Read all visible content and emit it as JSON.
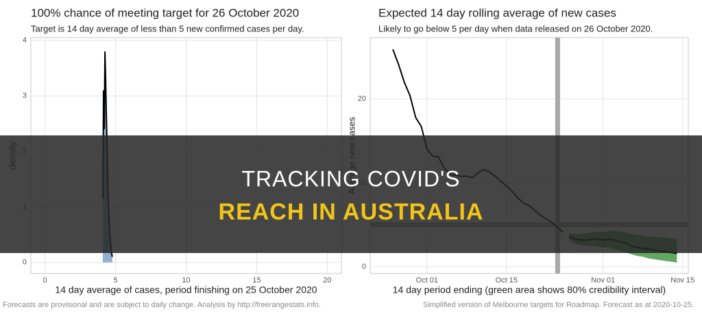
{
  "chart_data": [
    {
      "type": "area",
      "title": "100% chance of meeting target for 26 October 2020",
      "subtitle": "Target is 14 day average of less than 5 new confirmed cases per day.",
      "x_label": "14 day average of cases, period finishing on 25 October 2020",
      "y_label": "density",
      "x": [
        4.1,
        4.15,
        4.2,
        4.25,
        4.3,
        4.35,
        4.4,
        4.45,
        4.5,
        4.6,
        4.7,
        4.77
      ],
      "values": [
        1.15,
        3.1,
        2.4,
        3.8,
        3.3,
        2.6,
        2.1,
        1.5,
        1.0,
        0.5,
        0.2,
        0.1
      ],
      "color": "#000000",
      "fill": "#8fb0cf",
      "xlim": [
        -1,
        21
      ],
      "xticks": [
        0,
        5,
        10,
        15,
        20
      ],
      "ylim": [
        -0.2,
        4.05
      ],
      "yticks": [
        0,
        1,
        2,
        3,
        4
      ],
      "grid": true
    },
    {
      "type": "line",
      "title": "Expected 14 day rolling average of new cases",
      "subtitle": "Likely to go below 5 per day when data released on 26 October 2020.",
      "x_label": "14 day period ending (green area shows 80% credibility interval)",
      "y_label": "Average new cases",
      "line": {
        "x": [
          "Sep 25",
          "Sep 26",
          "Sep 27",
          "Sep 28",
          "Sep 29",
          "Sep 30",
          "Oct 01",
          "Oct 02",
          "Oct 03",
          "Oct 04",
          "Oct 05",
          "Oct 06",
          "Oct 07",
          "Oct 08",
          "Oct 09",
          "Oct 10",
          "Oct 11",
          "Oct 12",
          "Oct 13",
          "Oct 14",
          "Oct 15",
          "Oct 16",
          "Oct 17",
          "Oct 18",
          "Oct 19",
          "Oct 20",
          "Oct 21",
          "Oct 22",
          "Oct 23",
          "Oct 24",
          "Oct 25"
        ],
        "values": [
          25.9,
          24.1,
          22.0,
          20.4,
          17.8,
          16.7,
          14.0,
          13.2,
          13.1,
          11.8,
          11.0,
          10.9,
          10.8,
          10.8,
          10.6,
          11.2,
          11.6,
          11.3,
          10.8,
          10.2,
          9.6,
          9.0,
          8.2,
          7.6,
          7.3,
          6.7,
          6.1,
          5.7,
          5.3,
          4.7,
          4.1
        ]
      },
      "forecast": {
        "x": [
          "Oct 26",
          "Oct 27",
          "Oct 28",
          "Oct 29",
          "Oct 30",
          "Oct 31",
          "Nov 01",
          "Nov 02",
          "Nov 03",
          "Nov 04",
          "Nov 05",
          "Nov 06",
          "Nov 07",
          "Nov 08",
          "Nov 09",
          "Nov 10",
          "Nov 11",
          "Nov 12",
          "Nov 13",
          "Nov 14"
        ],
        "values": [
          3.6,
          3.3,
          3.2,
          3.2,
          3.3,
          3.3,
          3.2,
          3.3,
          3.2,
          3.0,
          2.8,
          2.5,
          2.3,
          2.2,
          2.1,
          2.0,
          1.9,
          1.8,
          1.7,
          1.6
        ],
        "lower": [
          3.2,
          2.8,
          2.6,
          2.5,
          2.5,
          2.4,
          2.3,
          2.3,
          2.1,
          1.9,
          1.7,
          1.5,
          1.3,
          1.2,
          1.0,
          0.9,
          0.8,
          0.7,
          0.6,
          0.5
        ],
        "upper": [
          4.0,
          3.9,
          3.9,
          4.0,
          4.1,
          4.2,
          4.1,
          4.3,
          4.3,
          4.2,
          4.1,
          3.9,
          3.8,
          3.7,
          3.6,
          3.6,
          3.5,
          3.5,
          3.4,
          3.3
        ],
        "band_color": "#2e8b2e"
      },
      "color": "#000000",
      "reference_x": "Oct 24",
      "reference_y": 5,
      "reference_color": "#a8a8a8",
      "xlim": [
        "Sep 21",
        "Nov 16"
      ],
      "xticks": [
        "Oct 01",
        "Oct 15",
        "Nov 01",
        "Nov 15"
      ],
      "ylim": [
        -0.8,
        27.3
      ],
      "yticks": [
        0,
        10,
        20
      ],
      "grid": true
    }
  ],
  "banner": {
    "line1": "TRACKING COVID'S",
    "line2": "REACH IN AUSTRALIA"
  },
  "footer": {
    "left": "Forecasts are provisional and are subject to daily change. Analysis by http://freerangestats.info.",
    "right": "Simplified version of Melbourne targets for Roadmap. Forecast as at 2020-10-25."
  }
}
